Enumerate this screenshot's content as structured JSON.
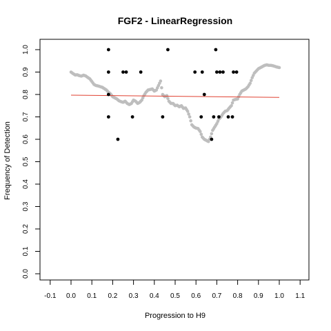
{
  "chart_data": {
    "type": "scatter",
    "title": "FGF2 - LinearRegression",
    "xlabel": "Progression to H9",
    "ylabel": "Frequency of Detection",
    "xlim": [
      -0.1,
      1.1
    ],
    "ylim": [
      0.0,
      1.0
    ],
    "x_ticks": [
      "-0.1",
      "0.0",
      "0.1",
      "0.2",
      "0.3",
      "0.4",
      "0.5",
      "0.6",
      "0.7",
      "0.8",
      "0.9",
      "1.0",
      "1.1"
    ],
    "y_ticks": [
      "0.0",
      "0.1",
      "0.2",
      "0.3",
      "0.4",
      "0.5",
      "0.6",
      "0.7",
      "0.8",
      "0.9",
      "1.0"
    ],
    "grid": false,
    "series": [
      {
        "kind": "smoothed-trace",
        "color": "#bebebe",
        "points": [
          [
            0.0,
            0.9
          ],
          [
            0.01,
            0.893
          ],
          [
            0.02,
            0.887
          ],
          [
            0.03,
            0.888
          ],
          [
            0.04,
            0.884
          ],
          [
            0.05,
            0.882
          ],
          [
            0.06,
            0.886
          ],
          [
            0.07,
            0.883
          ],
          [
            0.08,
            0.876
          ],
          [
            0.09,
            0.87
          ],
          [
            0.1,
            0.858
          ],
          [
            0.11,
            0.845
          ],
          [
            0.12,
            0.84
          ],
          [
            0.13,
            0.838
          ],
          [
            0.14,
            0.835
          ],
          [
            0.15,
            0.832
          ],
          [
            0.16,
            0.826
          ],
          [
            0.17,
            0.82
          ],
          [
            0.18,
            0.81
          ],
          [
            0.19,
            0.802
          ],
          [
            0.2,
            0.79
          ],
          [
            0.21,
            0.785
          ],
          [
            0.22,
            0.78
          ],
          [
            0.23,
            0.772
          ],
          [
            0.24,
            0.768
          ],
          [
            0.25,
            0.765
          ],
          [
            0.26,
            0.77
          ],
          [
            0.27,
            0.76
          ],
          [
            0.28,
            0.755
          ],
          [
            0.29,
            0.76
          ],
          [
            0.3,
            0.775
          ],
          [
            0.31,
            0.77
          ],
          [
            0.32,
            0.76
          ],
          [
            0.33,
            0.765
          ],
          [
            0.34,
            0.775
          ],
          [
            0.35,
            0.795
          ],
          [
            0.36,
            0.81
          ],
          [
            0.37,
            0.82
          ],
          [
            0.38,
            0.822
          ],
          [
            0.39,
            0.825
          ],
          [
            0.4,
            0.815
          ],
          [
            0.41,
            0.82
          ],
          [
            0.42,
            0.84
          ],
          [
            0.43,
            0.86
          ],
          [
            0.44,
            0.8
          ],
          [
            0.45,
            0.79
          ],
          [
            0.46,
            0.795
          ],
          [
            0.47,
            0.77
          ],
          [
            0.48,
            0.76
          ],
          [
            0.49,
            0.76
          ],
          [
            0.5,
            0.75
          ],
          [
            0.51,
            0.752
          ],
          [
            0.52,
            0.745
          ],
          [
            0.53,
            0.75
          ],
          [
            0.54,
            0.738
          ],
          [
            0.55,
            0.74
          ],
          [
            0.56,
            0.725
          ],
          [
            0.57,
            0.7
          ],
          [
            0.58,
            0.665
          ],
          [
            0.59,
            0.655
          ],
          [
            0.6,
            0.65
          ],
          [
            0.61,
            0.648
          ],
          [
            0.62,
            0.635
          ],
          [
            0.63,
            0.61
          ],
          [
            0.64,
            0.6
          ],
          [
            0.65,
            0.595
          ],
          [
            0.66,
            0.59
          ],
          [
            0.67,
            0.61
          ],
          [
            0.68,
            0.64
          ],
          [
            0.69,
            0.655
          ],
          [
            0.7,
            0.67
          ],
          [
            0.71,
            0.69
          ],
          [
            0.72,
            0.7
          ],
          [
            0.73,
            0.715
          ],
          [
            0.74,
            0.725
          ],
          [
            0.75,
            0.728
          ],
          [
            0.76,
            0.74
          ],
          [
            0.77,
            0.75
          ],
          [
            0.78,
            0.775
          ],
          [
            0.79,
            0.778
          ],
          [
            0.8,
            0.78
          ],
          [
            0.81,
            0.8
          ],
          [
            0.82,
            0.815
          ],
          [
            0.83,
            0.82
          ],
          [
            0.84,
            0.825
          ],
          [
            0.85,
            0.835
          ],
          [
            0.86,
            0.85
          ],
          [
            0.87,
            0.875
          ],
          [
            0.88,
            0.895
          ],
          [
            0.89,
            0.905
          ],
          [
            0.9,
            0.915
          ],
          [
            0.91,
            0.92
          ],
          [
            0.92,
            0.925
          ],
          [
            0.93,
            0.93
          ],
          [
            0.94,
            0.932
          ],
          [
            0.95,
            0.93
          ],
          [
            0.96,
            0.93
          ],
          [
            0.97,
            0.928
          ],
          [
            0.98,
            0.925
          ],
          [
            0.99,
            0.922
          ],
          [
            1.0,
            0.92
          ]
        ]
      },
      {
        "kind": "observations",
        "color": "#000000",
        "points": [
          [
            0.18,
            1.0
          ],
          [
            0.18,
            0.9
          ],
          [
            0.18,
            0.8
          ],
          [
            0.18,
            0.7
          ],
          [
            0.225,
            0.6
          ],
          [
            0.25,
            0.9
          ],
          [
            0.265,
            0.9
          ],
          [
            0.295,
            0.7
          ],
          [
            0.335,
            0.9
          ],
          [
            0.44,
            0.7
          ],
          [
            0.465,
            1.0
          ],
          [
            0.595,
            0.9
          ],
          [
            0.625,
            0.7
          ],
          [
            0.63,
            0.9
          ],
          [
            0.64,
            0.8
          ],
          [
            0.675,
            0.6
          ],
          [
            0.685,
            0.7
          ],
          [
            0.695,
            1.0
          ],
          [
            0.7,
            0.9
          ],
          [
            0.71,
            0.7
          ],
          [
            0.715,
            0.9
          ],
          [
            0.73,
            0.9
          ],
          [
            0.755,
            0.7
          ],
          [
            0.775,
            0.7
          ],
          [
            0.78,
            0.9
          ],
          [
            0.795,
            0.9
          ]
        ]
      },
      {
        "kind": "regression-line",
        "color": "#e04030",
        "points": [
          [
            0.0,
            0.797
          ],
          [
            1.0,
            0.787
          ]
        ]
      }
    ]
  }
}
